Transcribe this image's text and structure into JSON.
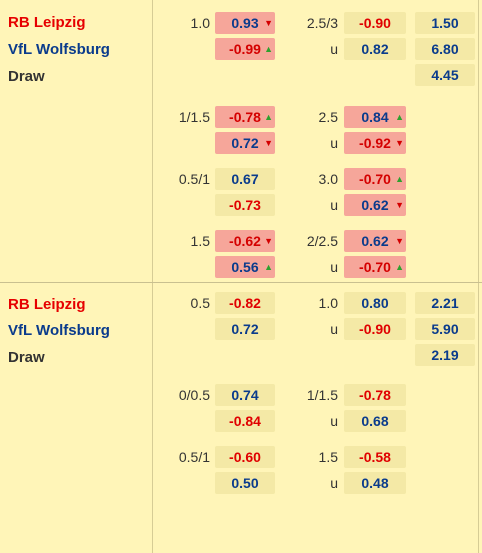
{
  "sections": [
    {
      "home": "RB Leipzig",
      "away": "VfL Wolfsburg",
      "draw": "Draw",
      "rows": [
        {
          "hcap": "1.0",
          "h1": {
            "v": "0.93",
            "hl": true,
            "arrow": "down"
          },
          "h2": {
            "v": "-0.99",
            "hl": true,
            "arrow": "up"
          },
          "ou": "2.5/3",
          "o1": {
            "v": "-0.90",
            "hl": false
          },
          "o2": {
            "v": "0.82",
            "hl": false
          },
          "u": "u",
          "x": [
            "1.50",
            "6.80",
            "4.45"
          ]
        },
        {
          "hcap": "1/1.5",
          "h1": {
            "v": "-0.78",
            "hl": true,
            "arrow": "up"
          },
          "h2": {
            "v": "0.72",
            "hl": true,
            "arrow": "down"
          },
          "ou": "2.5",
          "o1": {
            "v": "0.84",
            "hl": true,
            "arrow": "up"
          },
          "o2": {
            "v": "-0.92",
            "hl": true,
            "arrow": "down"
          },
          "u": "u"
        },
        {
          "hcap": "0.5/1",
          "h1": {
            "v": "0.67",
            "hl": false
          },
          "h2": {
            "v": "-0.73",
            "hl": false
          },
          "ou": "3.0",
          "o1": {
            "v": "-0.70",
            "hl": true,
            "arrow": "up"
          },
          "o2": {
            "v": "0.62",
            "hl": true,
            "arrow": "down"
          },
          "u": "u"
        },
        {
          "hcap": "1.5",
          "h1": {
            "v": "-0.62",
            "hl": true,
            "arrow": "down"
          },
          "h2": {
            "v": "0.56",
            "hl": true,
            "arrow": "up"
          },
          "ou": "2/2.5",
          "o1": {
            "v": "0.62",
            "hl": true,
            "arrow": "down"
          },
          "o2": {
            "v": "-0.70",
            "hl": true,
            "arrow": "up"
          },
          "u": "u"
        }
      ]
    },
    {
      "home": "RB Leipzig",
      "away": "VfL Wolfsburg",
      "draw": "Draw",
      "rows": [
        {
          "hcap": "0.5",
          "h1": {
            "v": "-0.82",
            "hl": false
          },
          "h2": {
            "v": "0.72",
            "hl": false
          },
          "ou": "1.0",
          "o1": {
            "v": "0.80",
            "hl": false
          },
          "o2": {
            "v": "-0.90",
            "hl": false
          },
          "u": "u",
          "x": [
            "2.21",
            "5.90",
            "2.19"
          ]
        },
        {
          "hcap": "0/0.5",
          "h1": {
            "v": "0.74",
            "hl": false
          },
          "h2": {
            "v": "-0.84",
            "hl": false
          },
          "ou": "1/1.5",
          "o1": {
            "v": "-0.78",
            "hl": false
          },
          "o2": {
            "v": "0.68",
            "hl": false
          },
          "u": "u"
        },
        {
          "hcap": "0.5/1",
          "h1": {
            "v": "-0.60",
            "hl": false
          },
          "h2": {
            "v": "0.50",
            "hl": false
          },
          "ou": "1.5",
          "o1": {
            "v": "-0.58",
            "hl": false
          },
          "o2": {
            "v": "0.48",
            "hl": false
          },
          "u": "u"
        }
      ]
    }
  ],
  "colors": {
    "home": "#e60000",
    "away": "#0a3b8c",
    "highlight": "#f6a69a",
    "cell": "#f4e9a6",
    "up": "#2ea12e",
    "down": "#d40000"
  },
  "icons": {
    "up": "arrow-up-icon",
    "down": "arrow-down-icon"
  }
}
